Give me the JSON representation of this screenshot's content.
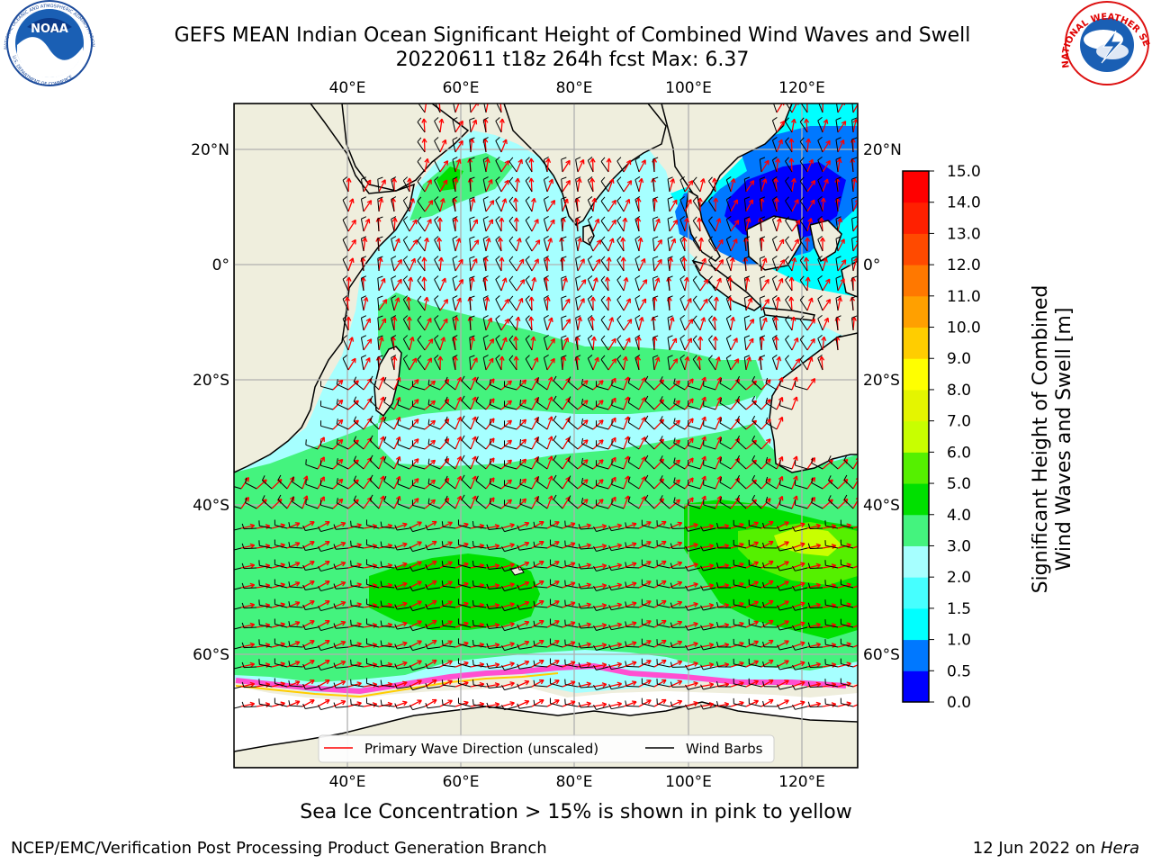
{
  "header": {
    "title_line1": "GEFS MEAN Indian Ocean Significant Height of Combined Wind Waves and Swell",
    "title_line2": "20220611 t18z 264h fcst   Max: 6.37"
  },
  "logos": {
    "noaa_text": "NOAA",
    "noaa_ring": "NATIONAL OCEANIC AND ATMOSPHERIC ADMINISTRATION",
    "noaa_ring_bottom": "U.S. DEPARTMENT OF COMMERCE",
    "nws_ring": "NATIONAL WEATHER SERVICE"
  },
  "map": {
    "lon_ticks": [
      "40°E",
      "60°E",
      "80°E",
      "100°E",
      "120°E"
    ],
    "lat_ticks": [
      "20°N",
      "0°",
      "20°S",
      "40°S",
      "60°S"
    ],
    "extent": {
      "lon": [
        20,
        130
      ],
      "lat": [
        -72,
        28
      ]
    },
    "legend": {
      "wave_direction": "Primary Wave Direction (unscaled)",
      "wind_barbs": "Wind Barbs"
    },
    "colors": {
      "land": "#efeedd",
      "wave_arrow": "#ff0000",
      "wind_barb": "#000000",
      "grid": "#b0b0b0"
    }
  },
  "colorbar": {
    "label_line1": "Significant Height of Combined",
    "label_line2": "Wind Waves and Swell [m]",
    "ticks": [
      "0.0",
      "0.5",
      "1.0",
      "1.5",
      "2.0",
      "3.0",
      "4.0",
      "5.0",
      "6.0",
      "7.0",
      "8.0",
      "9.0",
      "10.0",
      "11.0",
      "12.0",
      "13.0",
      "14.0",
      "15.0"
    ],
    "colors": [
      "#0000ff",
      "#0078ff",
      "#00ffff",
      "#46ffff",
      "#a6ffff",
      "#44f37e",
      "#00e000",
      "#55f000",
      "#c8ff00",
      "#e4f500",
      "#ffff00",
      "#ffcd00",
      "#ffa000",
      "#ff7800",
      "#ff4a00",
      "#ff2000",
      "#ff0000"
    ]
  },
  "footer": {
    "sea_ice_note": "Sea Ice Concentration > 15% is shown in pink to yellow",
    "credit": "NCEP/EMC/Verification Post Processing Product Generation Branch",
    "date": "12 Jun 2022 on",
    "host": "Hera"
  }
}
